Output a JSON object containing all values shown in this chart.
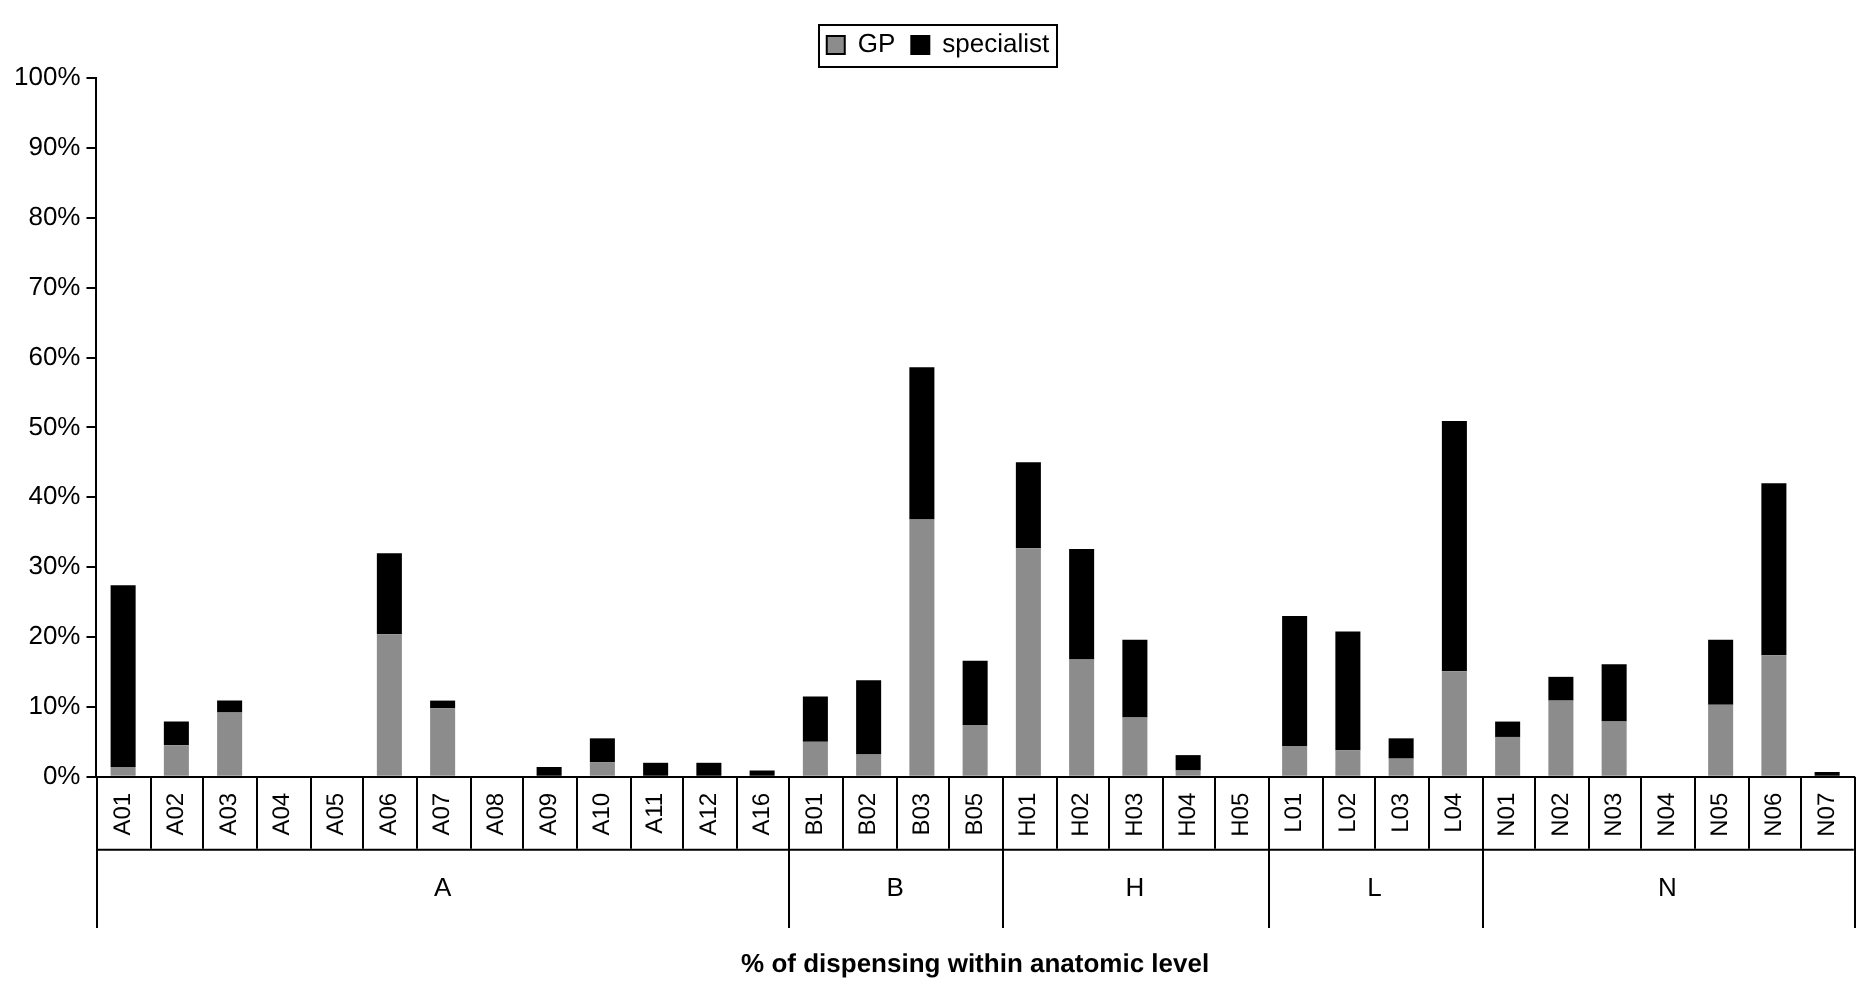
{
  "chart_data": {
    "type": "bar",
    "stacked": true,
    "xlabel": "% of dispensing within anatomic level",
    "categories": [
      "A01",
      "A02",
      "A03",
      "A04",
      "A05",
      "A06",
      "A07",
      "A08",
      "A09",
      "A10",
      "A11",
      "A12",
      "A16",
      "B01",
      "B02",
      "B03",
      "B05",
      "H01",
      "H02",
      "H03",
      "H04",
      "H05",
      "L01",
      "L02",
      "L03",
      "L04",
      "N01",
      "N02",
      "N03",
      "N04",
      "N05",
      "N06",
      "N07"
    ],
    "series": [
      {
        "name": "GP",
        "color": "#8c8c8c",
        "values": [
          1.4,
          4.5,
          9.2,
          0,
          0,
          20.4,
          9.8,
          0,
          0,
          2.1,
          0,
          0,
          0,
          5.0,
          3.2,
          36.8,
          7.4,
          32.7,
          16.8,
          8.5,
          0.9,
          0,
          4.4,
          3.8,
          2.6,
          15.1,
          5.7,
          10.9,
          7.9,
          0,
          10.3,
          17.4,
          0
        ]
      },
      {
        "name": "specialist",
        "color": "#000000",
        "values": [
          26.0,
          3.4,
          1.7,
          0,
          0,
          11.6,
          1.1,
          0,
          1.4,
          3.4,
          2.0,
          2.0,
          0.9,
          6.5,
          10.6,
          21.8,
          9.2,
          12.3,
          15.8,
          11.1,
          2.2,
          0,
          18.6,
          17.0,
          2.9,
          35.8,
          2.2,
          3.4,
          8.2,
          0,
          9.3,
          24.6,
          0.7
        ]
      }
    ],
    "annotations": [
      "A",
      "B",
      "H",
      "L",
      "N"
    ],
    "ylim": [
      0,
      100
    ],
    "yticks": [
      {
        "value": 0,
        "label": "0%"
      },
      {
        "value": 10,
        "label": "10%"
      },
      {
        "value": 20,
        "label": "20%"
      },
      {
        "value": 30,
        "label": "30%"
      },
      {
        "value": 40,
        "label": "40%"
      },
      {
        "value": 50,
        "label": "50%"
      },
      {
        "value": 60,
        "label": "60%"
      },
      {
        "value": 70,
        "label": "70%"
      },
      {
        "value": 80,
        "label": "80%"
      },
      {
        "value": 90,
        "label": "90%"
      },
      {
        "value": 100,
        "label": "100%"
      }
    ],
    "grid": false,
    "legend": "top"
  }
}
